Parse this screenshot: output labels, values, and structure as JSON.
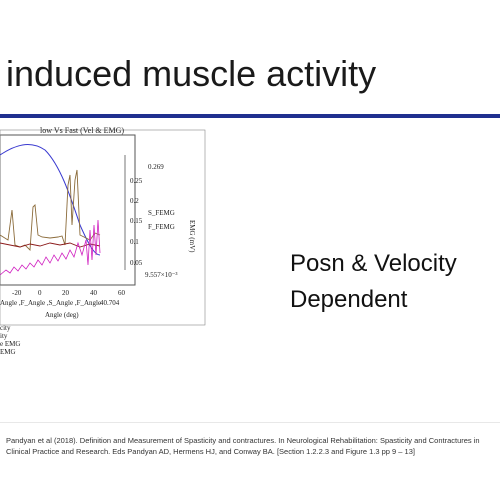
{
  "slide": {
    "title": "induced muscle activity",
    "side_text_line1": "Posn & Velocity",
    "side_text_line2": "Dependent",
    "citation": "Pandyan et al (2018). Definition and Measurement of Spasticity and contractures. In Neurological Rehabilitation: Spasticity and Contractures in Clinical Practice and Research. Eds Pandyan AD, Hermens HJ, and Conway BA. [Section 1.2.2.3 and Figure 1.3 pp 9 – 13]"
  },
  "colors": {
    "title_rule": "#1f2f8f",
    "velocity_blue": "#3a3ad0",
    "emg_brown": "#8b6b3a",
    "emg_darkred": "#8b1a1a",
    "emg_magenta": "#d020c0"
  },
  "figure": {
    "plot_title": "low Vs Fast (Vel & EMG)",
    "x_axis_label": "Angle (deg)",
    "x_ticks": [
      "-20",
      "0",
      "20",
      "40",
      "60"
    ],
    "x_variable_labels": "Angle ,F_Angle ,S_Angle ,F_Angle",
    "x_max_marker": "40.704",
    "right_axis_label": "EMG (mV)",
    "right_ticks": [
      "0.25",
      "0.2",
      "0.15",
      "0.1",
      "0.05"
    ],
    "right_top_marker": "0.269",
    "right_bottom_marker": "9.557×10⁻³",
    "series_marker_1": "S_FEMG",
    "series_marker_2": "F_FEMG",
    "legend_lines": [
      "city",
      "ity",
      "e EMG",
      "EMG"
    ]
  }
}
